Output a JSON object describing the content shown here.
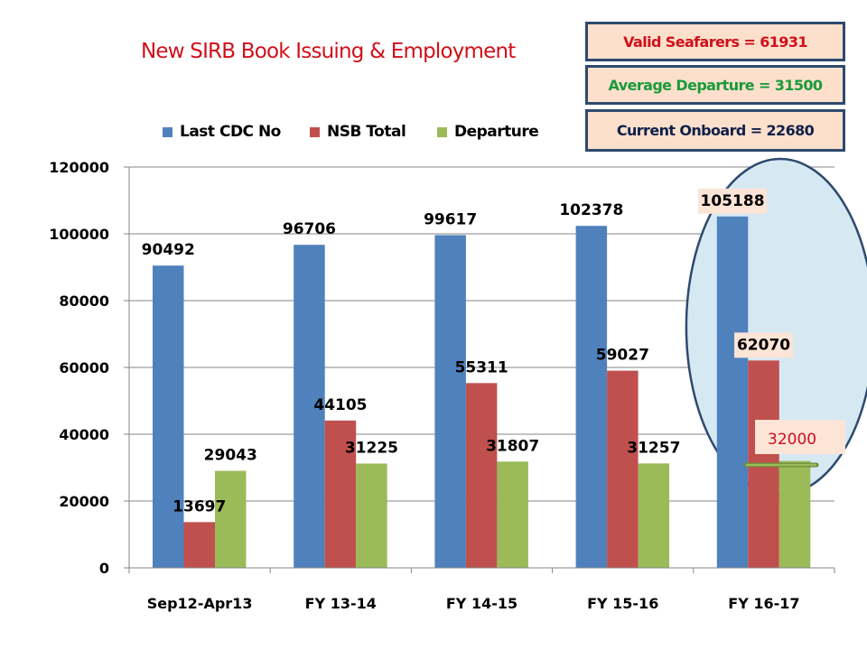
{
  "chart_data": {
    "type": "bar",
    "title": "New SIRB Book Issuing & Employment",
    "xlabel": "",
    "ylabel": "",
    "ylim": [
      0,
      120000
    ],
    "yticks": [
      0,
      20000,
      40000,
      60000,
      80000,
      100000,
      120000
    ],
    "grid": true,
    "legend_position": "top",
    "categories": [
      "Sep12-Apr13",
      "FY 13-14",
      "FY 14-15",
      "FY 15-16",
      "FY 16-17"
    ],
    "series": [
      {
        "name": "Last CDC No",
        "color": "#4f81bd",
        "values": [
          90492,
          96706,
          99617,
          102378,
          105188
        ]
      },
      {
        "name": "NSB Total",
        "color": "#c0504d",
        "values": [
          13697,
          44105,
          55311,
          59027,
          62070
        ]
      },
      {
        "name": "Departure",
        "color": "#9bbb59",
        "values": [
          29043,
          31225,
          31807,
          31257,
          32000
        ]
      }
    ],
    "annotations": {
      "highlight_category": "FY 16-17",
      "projected_departure_label": "32000",
      "info_boxes": [
        {
          "text": "Valid Seafarers  = 61931",
          "color": "#d0101a"
        },
        {
          "text": "Average Departure = 31500",
          "color": "#1a9a3a"
        },
        {
          "text": "Current Onboard  = 22680",
          "color": "#10204a"
        }
      ]
    }
  }
}
